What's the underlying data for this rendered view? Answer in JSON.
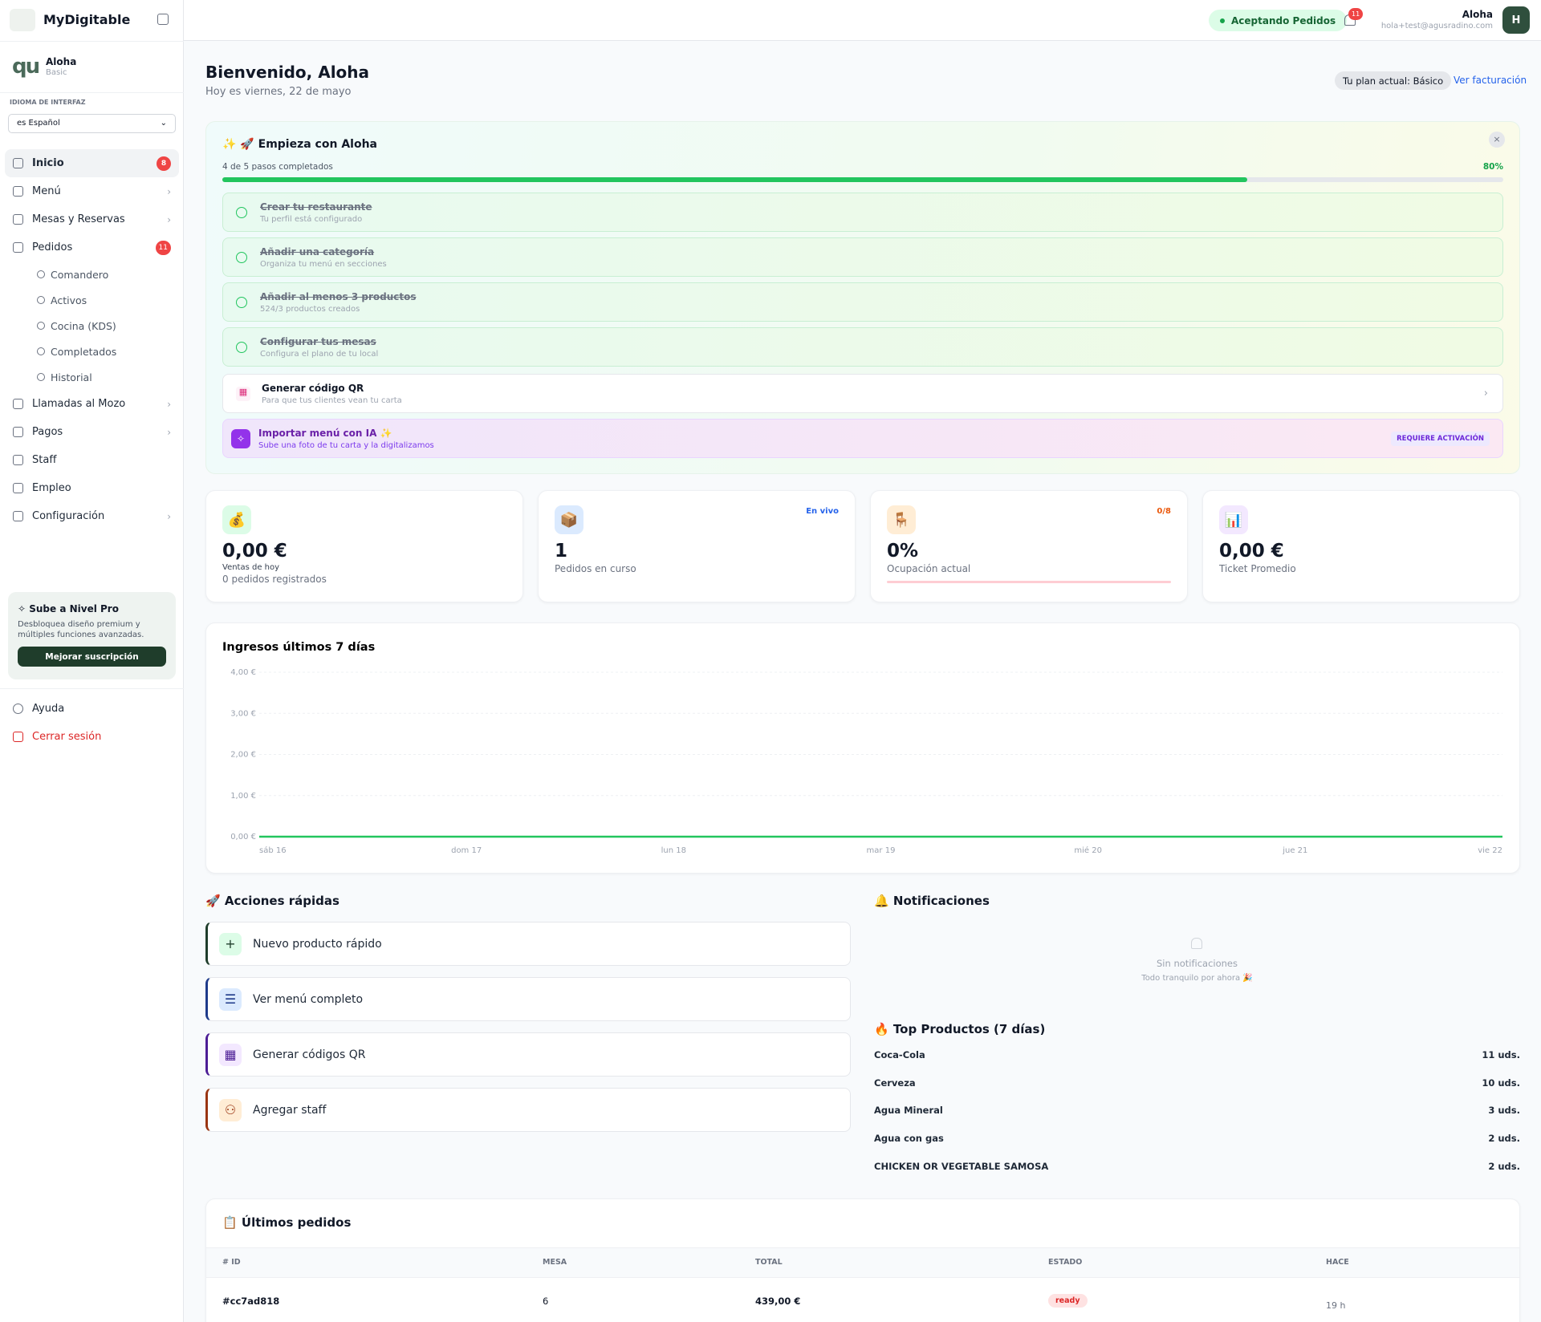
{
  "sidebar": {
    "brand": "MyDigitable",
    "restaurant": {
      "name": "Aloha",
      "plan": "Basic"
    },
    "language_label": "IDIOMA DE INTERFAZ",
    "language": "es Español",
    "nav": [
      {
        "label": "Inicio",
        "badge": "8"
      },
      {
        "label": "Menú"
      },
      {
        "label": "Mesas y Reservas"
      },
      {
        "label": "Pedidos",
        "badge": "11"
      }
    ],
    "orders_sub": [
      "Comandero",
      "Activos",
      "Cocina (KDS)",
      "Completados",
      "Historial"
    ],
    "nav2": [
      {
        "label": "Llamadas al Mozo"
      },
      {
        "label": "Pagos"
      },
      {
        "label": "Staff"
      },
      {
        "label": "Empleo"
      },
      {
        "label": "Configuración"
      }
    ],
    "promo": {
      "title": "Sube a Nivel Pro",
      "text": "Desbloquea diseño premium y múltiples funciones avanzadas.",
      "button": "Mejorar suscripción"
    },
    "help": "Ayuda",
    "logout": "Cerrar sesión"
  },
  "topbar": {
    "status": "Aceptando Pedidos",
    "notifications": "11",
    "user": {
      "name": "Aloha",
      "email": "hola+test@agusradino.com",
      "initial": "H"
    }
  },
  "header": {
    "title": "Bienvenido, Aloha",
    "date": "Hoy es viernes, 22 de mayo",
    "plan": "Tu plan actual: Básico",
    "billing": "Ver facturación"
  },
  "onboarding": {
    "title": "Empieza con Aloha",
    "progress_text": "4 de 5 pasos completados",
    "progress": {
      "value": 80,
      "label": "80%"
    },
    "steps": [
      {
        "title": "Crear tu restaurante",
        "subtitle": "Tu perfil está configurado"
      },
      {
        "title": "Añadir una categoría",
        "subtitle": "Organiza tu menú en secciones"
      },
      {
        "title": "Añadir al menos 3 productos",
        "subtitle": "524/3 productos creados"
      },
      {
        "title": "Configurar tus mesas",
        "subtitle": "Configura el plano de tu local"
      }
    ],
    "pending": {
      "title": "Generar código QR",
      "subtitle": "Para que tus clientes vean tu carta"
    },
    "ai": {
      "title": "Importar menú con IA ✨",
      "subtitle": "Sube una foto de tu carta y la digitalizamos",
      "badge": "REQUIERE ACTIVACIÓN"
    }
  },
  "stats": [
    {
      "value": "0,00 €",
      "label": "Ventas de hoy",
      "sub": "0 pedidos registrados"
    },
    {
      "value": "1",
      "label": "Pedidos en curso",
      "tag": "En vivo"
    },
    {
      "value": "0%",
      "label": "Ocupación actual",
      "tag": "0/8"
    },
    {
      "value": "0,00 €",
      "label": "Ticket Promedio"
    }
  ],
  "revenue_chart": {
    "type": "line",
    "title": "Ingresos últimos 7 días",
    "x": [
      "sáb 16",
      "dom 17",
      "lun 18",
      "mar 19",
      "mié 20",
      "jue 21",
      "vie 22"
    ],
    "values": [
      0,
      0,
      0,
      0,
      0,
      0,
      0
    ],
    "color": "#22c55e",
    "ylim": [
      0,
      4
    ],
    "yticks": [
      {
        "value": 0,
        "label": "0,00 €"
      },
      {
        "value": 1,
        "label": "1,00 €"
      },
      {
        "value": 2,
        "label": "2,00 €"
      },
      {
        "value": 3,
        "label": "3,00 €"
      },
      {
        "value": 4,
        "label": "4,00 €"
      }
    ],
    "grid": true
  },
  "quick_actions": {
    "title": "Acciones rápidas",
    "items": [
      "Nuevo producto rápido",
      "Ver menú completo",
      "Generar códigos QR",
      "Agregar staff"
    ]
  },
  "notifications": {
    "title": "Notificaciones",
    "empty": "Sin notificaciones",
    "empty_sub": "Todo tranquilo por ahora 🎉"
  },
  "top_products": {
    "title": "Top Productos (7 días)",
    "items": [
      {
        "name": "Coca-Cola",
        "units": "11 uds."
      },
      {
        "name": "Cerveza",
        "units": "10 uds."
      },
      {
        "name": "Agua Mineral",
        "units": "3 uds."
      },
      {
        "name": "Agua con gas",
        "units": "2 uds."
      },
      {
        "name": "CHICKEN OR VEGETABLE SAMOSA",
        "units": "2 uds."
      }
    ]
  },
  "orders": {
    "title": "Últimos pedidos",
    "columns": [
      "# ID",
      "MESA",
      "TOTAL",
      "ESTADO",
      "HACE"
    ],
    "rows": [
      [
        "#cc7ad818",
        "6",
        "439,00 €",
        "ready",
        "19 h"
      ]
    ]
  }
}
